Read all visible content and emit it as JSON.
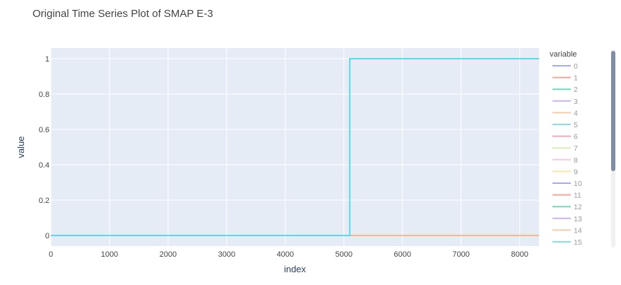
{
  "chart_data": {
    "type": "line",
    "title": "Original Time Series Plot of SMAP E-3",
    "xlabel": "index",
    "ylabel": "value",
    "xlim": [
      0,
      8330
    ],
    "ylim": [
      -0.06,
      1.06
    ],
    "x_ticks": [
      0,
      1000,
      2000,
      3000,
      4000,
      5000,
      6000,
      7000,
      8000
    ],
    "x_tick_labels": [
      "0",
      "1000",
      "2000",
      "3000",
      "4000",
      "5000",
      "6000",
      "7000",
      "8000"
    ],
    "y_ticks": [
      0,
      0.2,
      0.4,
      0.6,
      0.8,
      1
    ],
    "y_tick_labels": [
      "0",
      "0.2",
      "0.4",
      "0.6",
      "0.8",
      "1"
    ],
    "grid": true,
    "legend_title": "variable",
    "legend_position": "right",
    "series": [
      {
        "name": "0",
        "color": "#8b8be8",
        "x": [
          0,
          5100,
          5100,
          8330
        ],
        "y": [
          0,
          0,
          0,
          0
        ]
      },
      {
        "name": "1",
        "color": "#ef8a7a",
        "x": [
          0,
          5100,
          5100,
          8330
        ],
        "y": [
          0,
          0,
          0,
          0
        ]
      },
      {
        "name": "2",
        "color": "#3fcfa5",
        "x": [
          0,
          5100,
          5100,
          8330
        ],
        "y": [
          0,
          0,
          0,
          0
        ]
      },
      {
        "name": "3",
        "color": "#b79cf0",
        "x": [
          0,
          5100,
          5100,
          8330
        ],
        "y": [
          0,
          0,
          0,
          0
        ]
      },
      {
        "name": "4",
        "color": "#f5b98a",
        "x": [
          0,
          5100,
          5100,
          8330
        ],
        "y": [
          0,
          0,
          0,
          0
        ]
      },
      {
        "name": "5",
        "color": "#5ed8e8",
        "x": [
          0,
          5100,
          5100,
          8330
        ],
        "y": [
          0,
          0,
          0,
          0
        ]
      },
      {
        "name": "6",
        "color": "#f08aa0",
        "x": [
          0,
          5100,
          5100,
          8330
        ],
        "y": [
          0,
          0,
          0,
          0
        ]
      },
      {
        "name": "7",
        "color": "#c4ec9a",
        "x": [
          0,
          5100,
          5100,
          8330
        ],
        "y": [
          0,
          0,
          0,
          0
        ]
      },
      {
        "name": "8",
        "color": "#f3b6e6",
        "x": [
          0,
          5100,
          5100,
          8330
        ],
        "y": [
          0,
          0,
          0,
          0
        ]
      },
      {
        "name": "9",
        "color": "#fbe08a",
        "x": [
          0,
          5100,
          5100,
          8330
        ],
        "y": [
          0,
          0,
          0,
          0
        ]
      },
      {
        "name": "10",
        "color": "#8b8be8",
        "x": [
          0,
          5100,
          5100,
          8330
        ],
        "y": [
          0,
          0,
          0,
          0
        ]
      },
      {
        "name": "11",
        "color": "#ef8a7a",
        "x": [
          0,
          5100,
          5100,
          8330
        ],
        "y": [
          0,
          0,
          0,
          0
        ]
      },
      {
        "name": "12",
        "color": "#3fcfa5",
        "x": [
          0,
          5100,
          5100,
          8330
        ],
        "y": [
          0,
          0,
          0,
          0
        ]
      },
      {
        "name": "13",
        "color": "#b79cf0",
        "x": [
          0,
          5100,
          5100,
          8330
        ],
        "y": [
          0,
          0,
          0,
          0
        ]
      },
      {
        "name": "14",
        "color": "#f5b98a",
        "x": [
          0,
          5100,
          5100,
          8330
        ],
        "y": [
          0,
          0,
          0,
          0
        ]
      },
      {
        "name": "15",
        "color": "#5ed8e8",
        "x": [
          0,
          5100,
          5100,
          8330
        ],
        "y": [
          0,
          0,
          1,
          1
        ]
      }
    ]
  },
  "colors": {
    "plot_background": "#e5ecf6",
    "grid": "#ffffff",
    "scrollbar_track": "#f0f0f0",
    "scrollbar_thumb": "#7f8ea5"
  }
}
